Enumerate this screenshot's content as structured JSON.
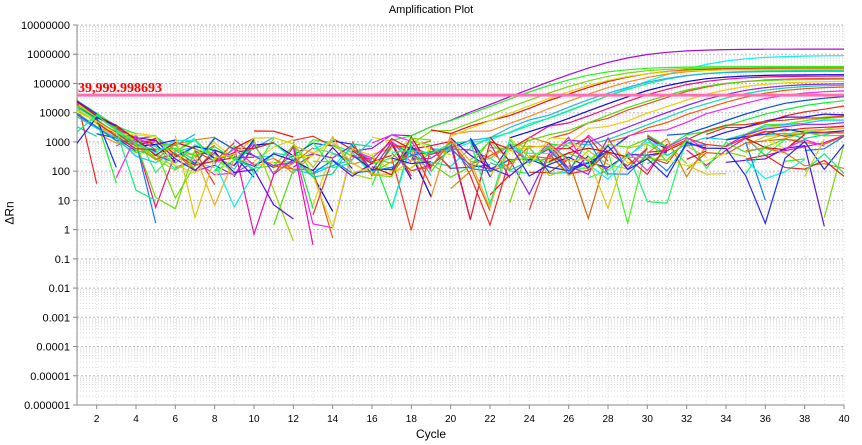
{
  "chart_data": {
    "type": "line",
    "title": "Amplification Plot",
    "xlabel": "Cycle",
    "ylabel": "ΔRn",
    "yscale": "log",
    "xlim": [
      1,
      40
    ],
    "ylim": [
      1e-06,
      10000000
    ],
    "x_ticks": [
      "2",
      "4",
      "6",
      "8",
      "10",
      "12",
      "14",
      "16",
      "18",
      "20",
      "22",
      "24",
      "26",
      "28",
      "30",
      "32",
      "34",
      "36",
      "38",
      "40"
    ],
    "y_ticks": [
      "10000000",
      "1000000",
      "100000",
      "10000",
      "1000",
      "100",
      "10",
      "1",
      "0.1",
      "0.01",
      "0.001",
      "0.0001",
      "0.00001",
      "0.000001"
    ],
    "grid": true,
    "threshold": {
      "value": 39999.998693,
      "label": "39,999.998693",
      "color": "#ff6fb0",
      "label_color": "#ff0000"
    },
    "series_model": "ΔRn(cycle) = plateau/(1+exp(-(cycle-ct)/1.6)) + noisy baseline + early-cycle decay; fields: [hue, plateau, ct, baseline]",
    "series": [
      [
        285,
        1500000,
        29,
        300
      ],
      [
        180,
        900000,
        33,
        250
      ],
      [
        120,
        380000,
        27,
        400
      ],
      [
        90,
        350000,
        28,
        300
      ],
      [
        0,
        330000,
        29,
        500
      ],
      [
        30,
        320000,
        30,
        350
      ],
      [
        60,
        300000,
        28.5,
        300
      ],
      [
        150,
        280000,
        31,
        250
      ],
      [
        200,
        260000,
        30.5,
        400
      ],
      [
        240,
        200000,
        31.5,
        300
      ],
      [
        330,
        180000,
        32,
        350
      ],
      [
        10,
        150000,
        33,
        300
      ],
      [
        100,
        140000,
        32.5,
        280
      ],
      [
        50,
        120000,
        34,
        320
      ],
      [
        270,
        100000,
        34.5,
        300
      ],
      [
        170,
        90000,
        35,
        260
      ],
      [
        20,
        80000,
        35.5,
        300
      ],
      [
        300,
        60000,
        36,
        300
      ],
      [
        220,
        40000,
        37,
        280
      ],
      [
        130,
        30000,
        37.5,
        300
      ],
      [
        0,
        20000,
        38,
        350
      ],
      [
        60,
        12000,
        38.5,
        300
      ],
      [
        250,
        9000,
        36,
        250
      ],
      [
        110,
        8000,
        37,
        300
      ],
      [
        15,
        7000,
        35,
        320
      ],
      [
        190,
        6000,
        36.5,
        280
      ],
      [
        280,
        5000,
        37,
        300
      ],
      [
        80,
        4000,
        38,
        260
      ],
      [
        350,
        3500,
        36,
        300
      ],
      [
        40,
        3000,
        37,
        280
      ],
      [
        160,
        2500,
        38,
        300
      ],
      [
        230,
        2000,
        35,
        300
      ],
      [
        5,
        2000,
        36,
        350
      ],
      [
        95,
        1500,
        37,
        300
      ],
      [
        320,
        1200,
        38,
        280
      ],
      [
        140,
        1000,
        39,
        300
      ],
      [
        25,
        900,
        37,
        250
      ],
      [
        210,
        800,
        38,
        280
      ],
      [
        70,
        700,
        36,
        300
      ],
      [
        0,
        600,
        35,
        320
      ],
      [
        260,
        500,
        39,
        300
      ],
      [
        120,
        400,
        38,
        250
      ],
      [
        35,
        0,
        40,
        300
      ],
      [
        180,
        0,
        40,
        250
      ],
      [
        300,
        0,
        40,
        350
      ],
      [
        90,
        0,
        40,
        280
      ],
      [
        5,
        0,
        40,
        300
      ],
      [
        240,
        0,
        40,
        260
      ],
      [
        55,
        0,
        40,
        320
      ],
      [
        150,
        0,
        40,
        300
      ]
    ]
  }
}
